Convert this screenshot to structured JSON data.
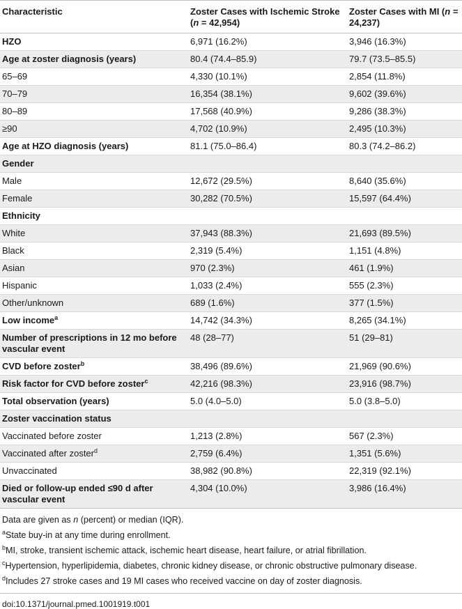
{
  "header": {
    "characteristic": "Characteristic",
    "col2_pre": "Zoster Cases with Ischemic Stroke (",
    "col2_n": "n",
    "col2_post": " = 42,954)",
    "col3_pre": "Zoster Cases with MI (",
    "col3_n": "n",
    "col3_post": " = 24,237)"
  },
  "rows": [
    {
      "label": "HZO",
      "bold": true,
      "stroke": "6,971 (16.2%)",
      "mi": "3,946 (16.3%)"
    },
    {
      "label": "Age at zoster diagnosis (years)",
      "bold": true,
      "stroke": "80.4 (74.4–85.9)",
      "mi": "79.7 (73.5–85.5)"
    },
    {
      "label": "65–69",
      "bold": false,
      "stroke": "4,330 (10.1%)",
      "mi": "2,854 (11.8%)"
    },
    {
      "label": "70–79",
      "bold": false,
      "stroke": "16,354 (38.1%)",
      "mi": "9,602 (39.6%)"
    },
    {
      "label": "80–89",
      "bold": false,
      "stroke": "17,568 (40.9%)",
      "mi": "9,286 (38.3%)"
    },
    {
      "label": "≥90",
      "bold": false,
      "stroke": "4,702 (10.9%)",
      "mi": "2,495 (10.3%)"
    },
    {
      "label": "Age at HZO diagnosis (years)",
      "bold": true,
      "stroke": "81.1 (75.0–86.4)",
      "mi": "80.3 (74.2–86.2)"
    },
    {
      "label": "Gender",
      "bold": true,
      "stroke": "",
      "mi": ""
    },
    {
      "label": "Male",
      "bold": false,
      "stroke": "12,672 (29.5%)",
      "mi": "8,640 (35.6%)"
    },
    {
      "label": "Female",
      "bold": false,
      "stroke": "30,282 (70.5%)",
      "mi": "15,597 (64.4%)"
    },
    {
      "label": "Ethnicity",
      "bold": true,
      "stroke": "",
      "mi": ""
    },
    {
      "label": "White",
      "bold": false,
      "stroke": "37,943 (88.3%)",
      "mi": "21,693 (89.5%)"
    },
    {
      "label": "Black",
      "bold": false,
      "stroke": "2,319 (5.4%)",
      "mi": "1,151 (4.8%)"
    },
    {
      "label": "Asian",
      "bold": false,
      "stroke": "970 (2.3%)",
      "mi": "461 (1.9%)"
    },
    {
      "label": "Hispanic",
      "bold": false,
      "stroke": "1,033 (2.4%)",
      "mi": "555 (2.3%)"
    },
    {
      "label": "Other/unknown",
      "bold": false,
      "stroke": "689 (1.6%)",
      "mi": "377 (1.5%)"
    },
    {
      "label": "Low income",
      "sup": "a",
      "bold": true,
      "stroke": "14,742 (34.3%)",
      "mi": "8,265 (34.1%)"
    },
    {
      "label": "Number of prescriptions in 12 mo before vascular event",
      "bold": true,
      "stroke": "48 (28–77)",
      "mi": "51 (29–81)"
    },
    {
      "label": "CVD before zoster",
      "sup": "b",
      "bold": true,
      "stroke": "38,496 (89.6%)",
      "mi": "21,969 (90.6%)"
    },
    {
      "label": "Risk factor for CVD before zoster",
      "sup": "c",
      "bold": true,
      "stroke": "42,216 (98.3%)",
      "mi": "23,916 (98.7%)"
    },
    {
      "label": "Total observation (years)",
      "bold": true,
      "stroke": "5.0 (4.0–5.0)",
      "mi": "5.0 (3.8–5.0)"
    },
    {
      "label": "Zoster vaccination status",
      "bold": true,
      "stroke": "",
      "mi": ""
    },
    {
      "label": "Vaccinated before zoster",
      "bold": false,
      "stroke": "1,213 (2.8%)",
      "mi": "567 (2.3%)"
    },
    {
      "label": "Vaccinated after zoster",
      "sup": "d",
      "bold": false,
      "stroke": "2,759 (6.4%)",
      "mi": "1,351 (5.6%)"
    },
    {
      "label": "Unvaccinated",
      "bold": false,
      "stroke": "38,982 (90.8%)",
      "mi": "22,319 (92.1%)"
    },
    {
      "label": "Died or follow-up ended ≤90 d after vascular event",
      "bold": true,
      "stroke": "4,304 (10.0%)",
      "mi": "3,986 (16.4%)"
    }
  ],
  "notes": {
    "data_pre": "Data are given as ",
    "data_n": "n",
    "data_post": " (percent) or median (IQR).",
    "a_mark": "a",
    "a_text": "State buy-in at any time during enrollment.",
    "b_mark": "b",
    "b_text": "MI, stroke, transient ischemic attack, ischemic heart disease, heart failure, or atrial fibrillation.",
    "c_mark": "c",
    "c_text": "Hypertension, hyperlipidemia, diabetes, chronic kidney disease, or chronic obstructive pulmonary disease.",
    "d_mark": "d",
    "d_text": "Includes 27 stroke cases and 19 MI cases who received vaccine on day of zoster diagnosis."
  },
  "doi": "doi:10.1371/journal.pmed.1001919.t001"
}
